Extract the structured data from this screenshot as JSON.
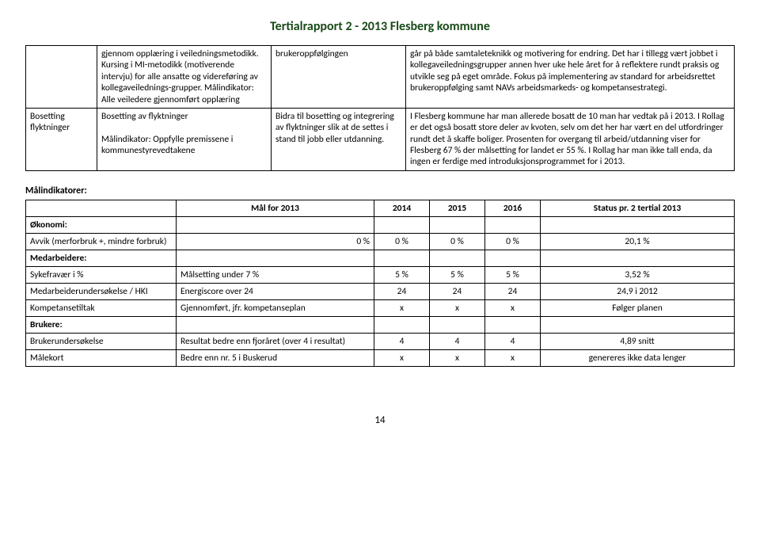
{
  "header_title": "Tertialrapport 2 - 2013 Flesberg kommune",
  "top_table": {
    "col_widths": [
      "90px",
      "220px",
      "170px",
      "auto"
    ],
    "rows": [
      {
        "c0": "",
        "c1": "gjennom opplæring i veiledningsmetodikk. Kursing i MI-metodikk (motiverende intervju) for alle ansatte og videreføring av kollegaveilednings-grupper. Målindikator: Alle veiledere gjennomført opplæring",
        "c2": "brukeroppfølgingen",
        "c3": "går på både samtaleteknikk og motivering for endring. Det har i tillegg vært jobbet i kollegaveiledningsgrupper annen hver uke hele året for å reflektere rundt praksis og utvikle seg på eget område. Fokus på implementering av standard for arbeidsrettet brukeroppfølging samt NAVs arbeidsmarkeds- og kompetansestrategi."
      },
      {
        "c0": "Bosetting flyktninger",
        "c1": "Bosetting av flyktninger\n\nMålindikator: Oppfylle premissene i kommunestyrevedtakene",
        "c2": "Bidra til bosetting og integrering av flyktninger slik at de settes i stand til jobb eller utdanning.",
        "c3": "I Flesberg kommune har man allerede bosatt de 10 man har vedtak på i 2013. I Rollag er det også bosatt store deler av kvoten, selv om det her har vært en del utfordringer rundt det å skaffe boliger. Prosenten for overgang til arbeid/utdanning viser for Flesberg 67 % der målsetting for landet er 55 %. I Rollag har man ikke tall enda, da ingen er ferdige med introduksjonsprogrammet for i 2013."
      }
    ]
  },
  "indicators_label": "Målindikatorer:",
  "ind_table": {
    "headers": [
      "",
      "Mål for 2013",
      "2014",
      "2015",
      "2016",
      "Status pr. 2 tertial 2013"
    ],
    "col_widths": [
      "190px",
      "250px",
      "70px",
      "70px",
      "70px",
      "auto"
    ],
    "rows": [
      {
        "type": "subhead",
        "c0": "Økonomi:"
      },
      {
        "c0": "Avvik (merforbruk +, mindre forbruk)",
        "c1": "0 %",
        "c2": "0 %",
        "c3": "0 %",
        "c4": "0 %",
        "c5": "20,1 %",
        "c1_align": "right"
      },
      {
        "type": "subhead",
        "c0": "Medarbeidere:"
      },
      {
        "c0": "Sykefravær i %",
        "c1": "Målsetting under 7 %",
        "c2": "5 %",
        "c3": "5 %",
        "c4": "5 %",
        "c5": "3,52 %"
      },
      {
        "c0": "Medarbeiderundersøkelse / HKI",
        "c1": "Energiscore over 24",
        "c2": "24",
        "c3": "24",
        "c4": "24",
        "c5": "24,9 i 2012"
      },
      {
        "c0": "Kompetansetiltak",
        "c1": "Gjennomført, jfr. kompetanseplan",
        "c2": "x",
        "c3": "x",
        "c4": "x",
        "c5": "Følger planen"
      },
      {
        "type": "subhead",
        "c0": "Brukere:"
      },
      {
        "c0": "Brukerundersøkelse",
        "c1": "Resultat bedre enn fjoråret (over 4 i resultat)",
        "c2": "4",
        "c3": "4",
        "c4": "4",
        "c5": "4,89 snitt"
      },
      {
        "c0": "Målekort",
        "c1": "Bedre enn nr. 5 i Buskerud",
        "c2": "x",
        "c3": "x",
        "c4": "x",
        "c5": "genereres ikke data lenger"
      }
    ]
  },
  "page_number": "14"
}
